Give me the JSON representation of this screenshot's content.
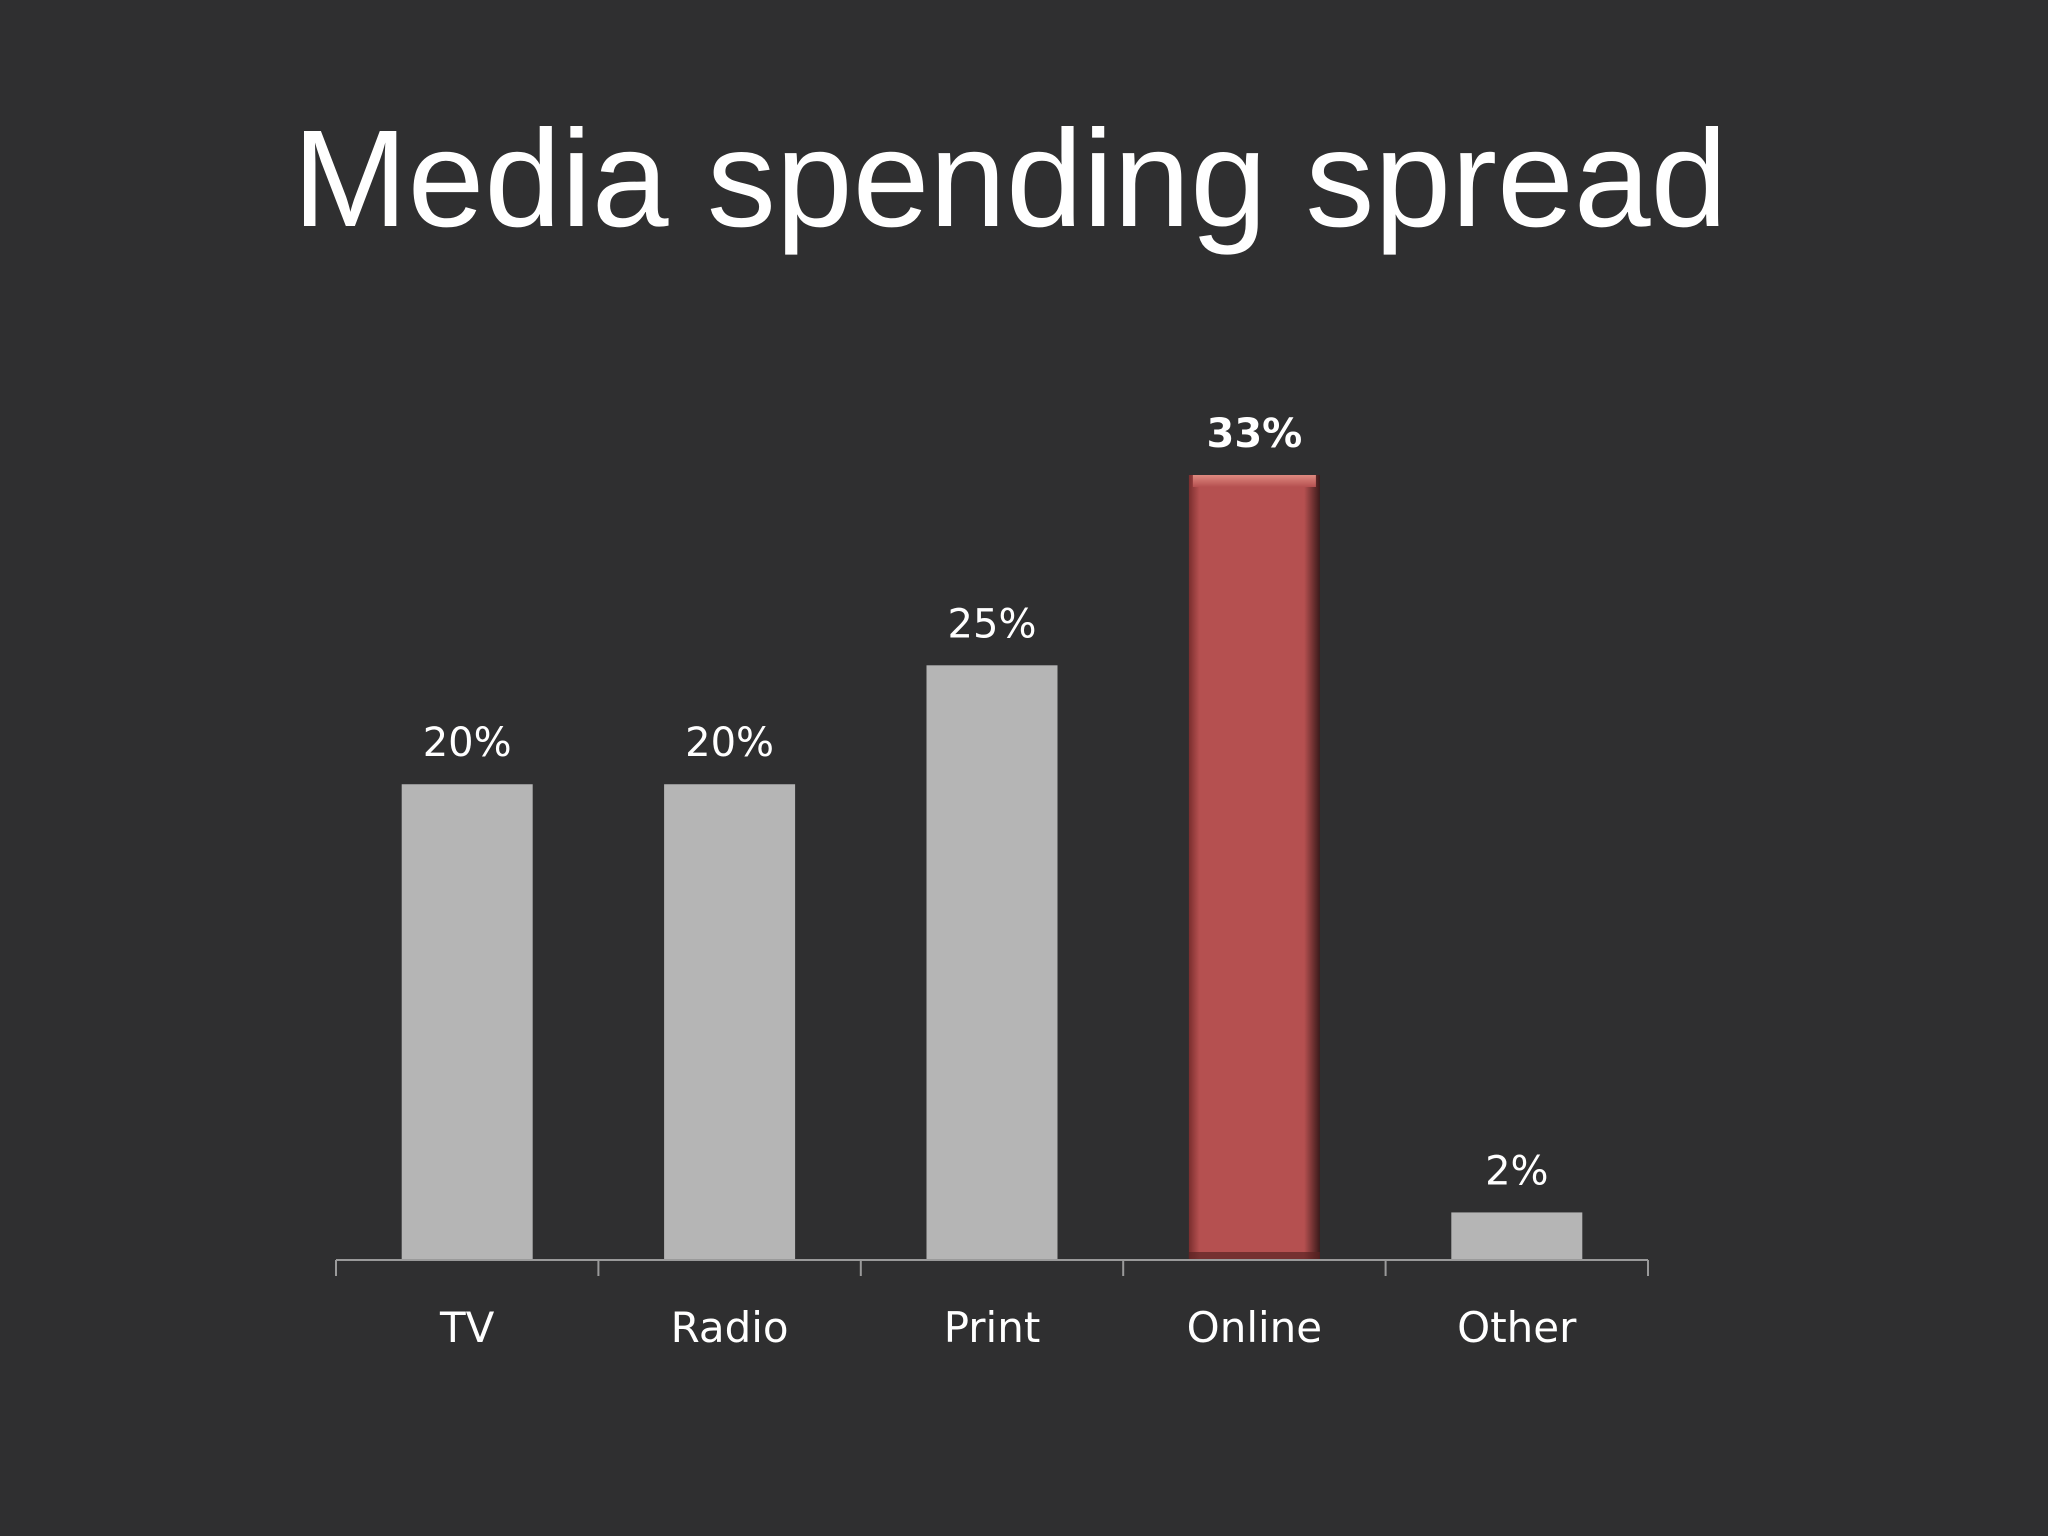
{
  "colors": {
    "background": "#2f2f30",
    "bar_default": "#b5b5b5",
    "bar_highlight": "#b55050",
    "axis": "#9a9a9a",
    "text": "#ffffff"
  },
  "chart_data": {
    "type": "bar",
    "title": "Media spending spread",
    "categories": [
      "TV",
      "Radio",
      "Print",
      "Online",
      "Other"
    ],
    "values": [
      20,
      20,
      25,
      33,
      2
    ],
    "data_labels": [
      "20%",
      "20%",
      "25%",
      "33%",
      "2%"
    ],
    "highlight_category": "Online",
    "ylim": [
      0,
      33
    ],
    "grid": false,
    "legend": "none",
    "xlabel": "",
    "ylabel": ""
  }
}
